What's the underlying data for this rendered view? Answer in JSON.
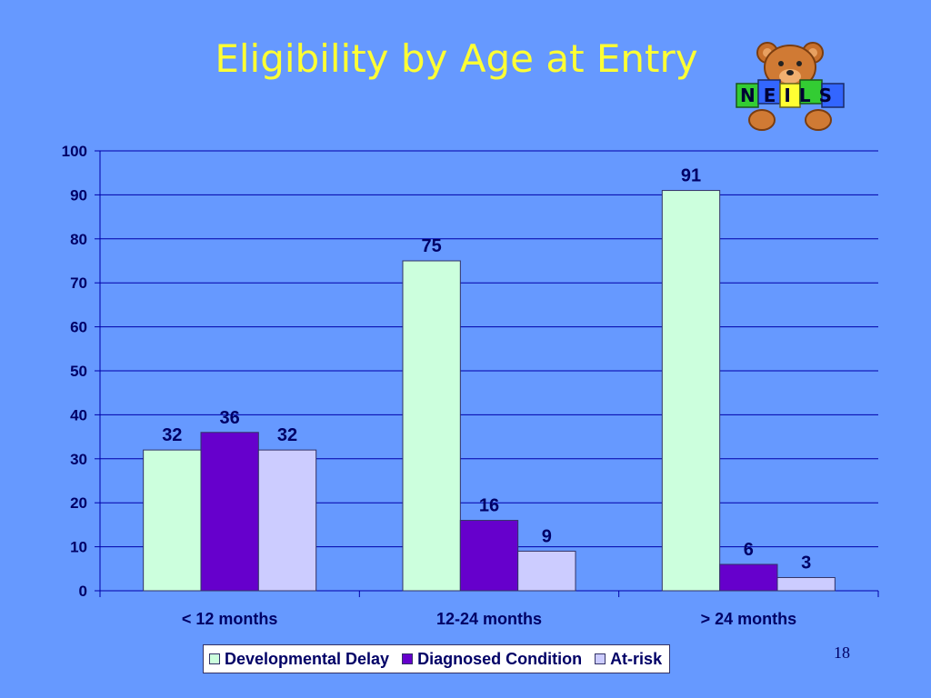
{
  "slide": {
    "title": "Eligibility by Age at Entry",
    "page_number": "18",
    "logo_text": "NEILS",
    "logo_icon": "teddy-bear-with-blocks-icon"
  },
  "colors": {
    "background": "#6699ff",
    "title": "#ffff33",
    "gridline": "#0000aa",
    "developmental_delay": "#ccffdd",
    "diagnosed_condition": "#6600cc",
    "at_risk": "#ccccff"
  },
  "chart_data": {
    "type": "bar",
    "title": "Eligibility by Age at Entry",
    "categories": [
      "< 12 months",
      "12-24 months",
      "> 24 months"
    ],
    "series": [
      {
        "name": "Developmental Delay",
        "values": [
          32,
          75,
          91
        ],
        "color": "#ccffdd"
      },
      {
        "name": "Diagnosed Condition",
        "values": [
          36,
          16,
          6
        ],
        "color": "#6600cc"
      },
      {
        "name": "At-risk",
        "values": [
          32,
          9,
          3
        ],
        "color": "#ccccff"
      }
    ],
    "ylim": [
      0,
      100
    ],
    "yticks": [
      0,
      10,
      20,
      30,
      40,
      50,
      60,
      70,
      80,
      90,
      100
    ],
    "grid": true,
    "legend_position": "bottom",
    "xlabel": "",
    "ylabel": ""
  }
}
